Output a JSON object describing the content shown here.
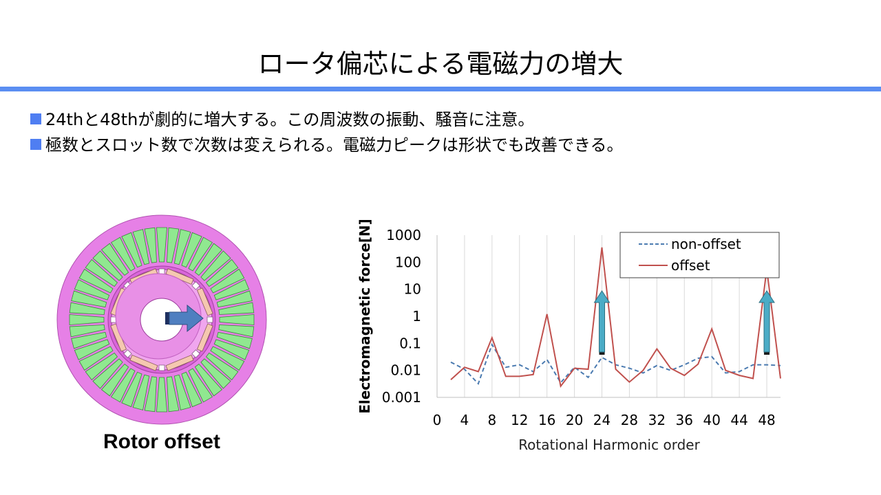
{
  "slide": {
    "title": "ロータ偏芯による電磁力の増大",
    "bullets": [
      "24thと48thが劇的に増大する。この周波数の振動、騒音に注意。",
      "極数とスロット数で次数は変えられる。電磁力ピークは形状でも改善できる。"
    ],
    "rule_color": "#5b8ef2",
    "bullet_color": "#4f7ef2"
  },
  "motor": {
    "caption": "Rotor offset",
    "stator_color": "#e680e6",
    "tooth_color": "#90e890",
    "rotor_color": "#f0a6ee",
    "arrow_color": "#4f7fc0"
  },
  "chart_data": {
    "type": "line",
    "xlabel": "Rotational Harmonic order",
    "ylabel": "Electromagnetic force[N]",
    "yscale": "log",
    "ylim": [
      0.001,
      1000
    ],
    "xlim": [
      0,
      50
    ],
    "xticks": [
      0,
      4,
      8,
      12,
      16,
      20,
      24,
      28,
      32,
      36,
      40,
      44,
      48
    ],
    "yticks": [
      "0.001",
      "0.01",
      "0.1",
      "1",
      "10",
      "100",
      "1000"
    ],
    "grid": "vertical",
    "legend": "top-right",
    "x": [
      2,
      4,
      6,
      8,
      10,
      12,
      14,
      16,
      18,
      20,
      22,
      24,
      26,
      28,
      30,
      32,
      34,
      36,
      38,
      40,
      42,
      44,
      46,
      48,
      50
    ],
    "series": [
      {
        "name": "non-offset",
        "color": "#4a7ab0",
        "dash": true,
        "values": [
          0.02,
          0.011,
          0.0032,
          0.09,
          0.013,
          0.016,
          0.009,
          0.025,
          0.0035,
          0.013,
          0.0055,
          0.03,
          0.016,
          0.012,
          0.008,
          0.015,
          0.01,
          0.016,
          0.028,
          0.032,
          0.008,
          0.009,
          0.016,
          0.016,
          0.015
        ]
      },
      {
        "name": "offset",
        "color": "#c0504d",
        "dash": false,
        "values": [
          0.0045,
          0.013,
          0.009,
          0.16,
          0.006,
          0.006,
          0.007,
          1.2,
          0.0026,
          0.012,
          0.011,
          350,
          0.011,
          0.0037,
          0.01,
          0.062,
          0.012,
          0.0065,
          0.017,
          0.34,
          0.01,
          0.0065,
          0.005,
          56,
          0.005
        ]
      }
    ],
    "annotations": [
      {
        "type": "up-arrow",
        "x": 24,
        "color": "#4bacc6"
      },
      {
        "type": "up-arrow",
        "x": 48,
        "color": "#4bacc6"
      }
    ]
  }
}
